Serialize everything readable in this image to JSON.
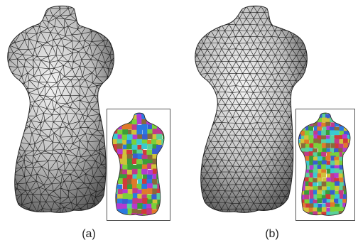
{
  "panels": [
    {
      "id": "a",
      "label": "(a)",
      "mesh": "irregular-triangle-mesh",
      "inset": "colored-segmentation-inset"
    },
    {
      "id": "b",
      "label": "(b)",
      "mesh": "regular-triangle-mesh",
      "inset": "colored-segmentation-inset"
    }
  ],
  "colors": {
    "mesh_line": "#1a1a1a",
    "surface_light": "#e8e8e8",
    "surface_dark": "#5a5a5a",
    "inset_border": "#555555"
  }
}
